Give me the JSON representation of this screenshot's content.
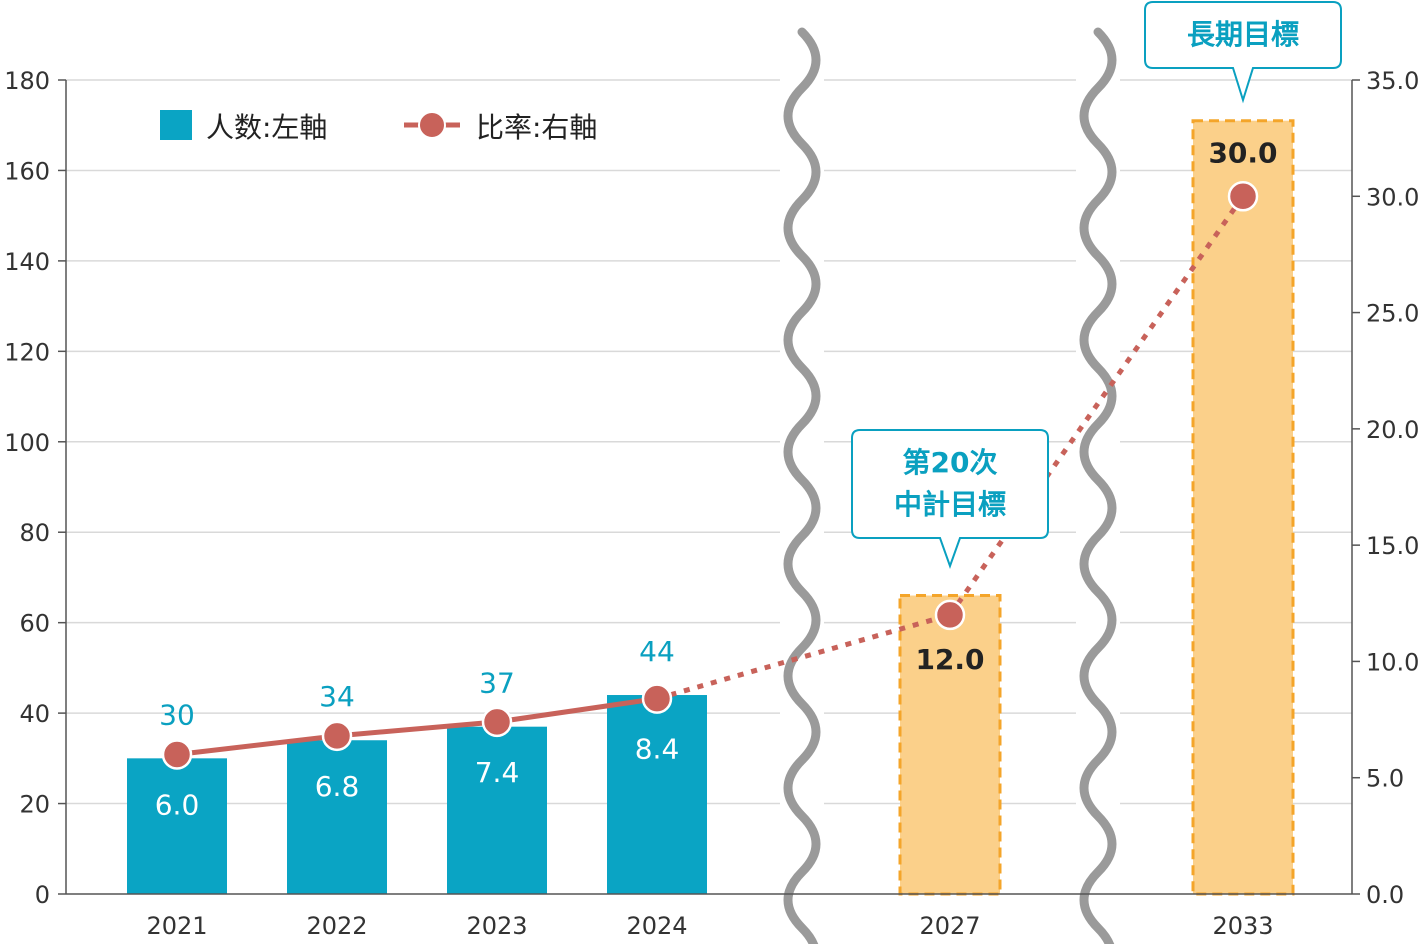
{
  "colors": {
    "bar": "#0aa4c4",
    "target_bar": "#fbd08a",
    "target_border": "#f4a52a",
    "line": "#c8625a",
    "callout": "#0aa0c0",
    "break_mark": "#9a9a9a",
    "grid": "#d9d9d9"
  },
  "chart_data": {
    "type": "bar",
    "categories": [
      "2021",
      "2022",
      "2023",
      "2024",
      "2027",
      "2033"
    ],
    "series": [
      {
        "name": "人数:左軸",
        "axis": "left",
        "values": [
          30,
          34,
          37,
          44,
          66,
          171
        ],
        "labeled_values": [
          "30",
          "34",
          "37",
          "44",
          null,
          null
        ],
        "style": [
          "actual",
          "actual",
          "actual",
          "actual",
          "target",
          "target"
        ]
      },
      {
        "name": "比率:右軸",
        "axis": "right",
        "type": "line",
        "values": [
          6.0,
          6.8,
          7.4,
          8.4,
          12.0,
          30.0
        ],
        "labels": [
          "6.0",
          "6.8",
          "7.4",
          "8.4",
          "12.0",
          "30.0"
        ],
        "line_style": [
          "solid",
          "solid",
          "solid",
          "dotted",
          "dotted"
        ]
      }
    ],
    "y_left": {
      "lim": [
        0,
        180
      ],
      "ticks": [
        "0",
        "20",
        "40",
        "60",
        "80",
        "100",
        "120",
        "140",
        "160",
        "180"
      ]
    },
    "y_right": {
      "lim": [
        0,
        35
      ],
      "ticks": [
        "0.0",
        "5.0",
        "10.0",
        "15.0",
        "20.0",
        "25.0",
        "30.0",
        "35.0"
      ]
    },
    "axis_breaks": [
      "2024-2027",
      "2027-2033"
    ],
    "callouts": [
      {
        "category": "2027",
        "lines": [
          "第20次",
          "中計目標"
        ]
      },
      {
        "category": "2033",
        "lines": [
          "長期目標"
        ]
      }
    ],
    "legend": {
      "position": "top-left",
      "entries": [
        "人数:左軸",
        "比率:右軸"
      ]
    },
    "grid": true
  }
}
